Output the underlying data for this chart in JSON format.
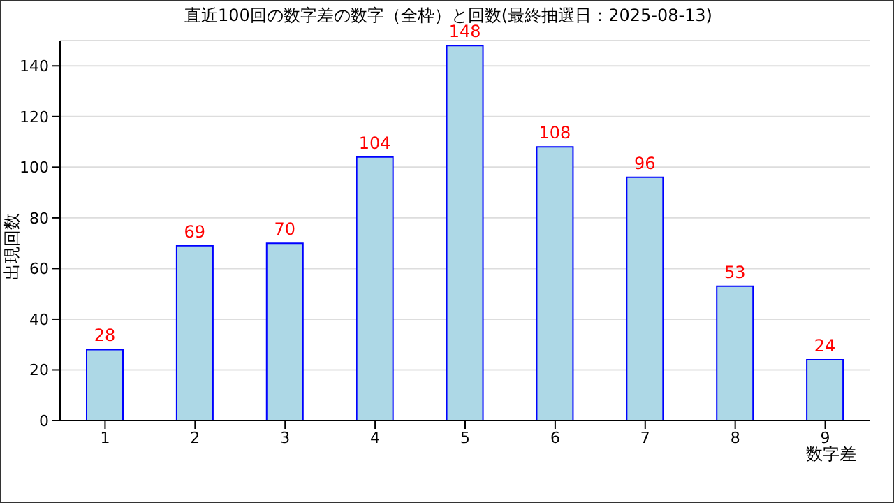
{
  "chart_data": {
    "type": "bar",
    "title": "直近100回の数字差の数字（全枠）と回数(最終抽選日：2025-08-13)",
    "xlabel": "数字差",
    "ylabel": "出現回数",
    "categories": [
      "1",
      "2",
      "3",
      "4",
      "5",
      "6",
      "7",
      "8",
      "9"
    ],
    "series": [
      {
        "color": "#add8e6",
        "values": [
          28,
          69,
          70,
          104,
          148,
          108,
          96,
          53,
          24
        ]
      }
    ],
    "ylim": [
      0,
      150
    ],
    "yticks": [
      0,
      20,
      40,
      60,
      80,
      100,
      120,
      140
    ],
    "grid": "y",
    "data_labels": true
  }
}
